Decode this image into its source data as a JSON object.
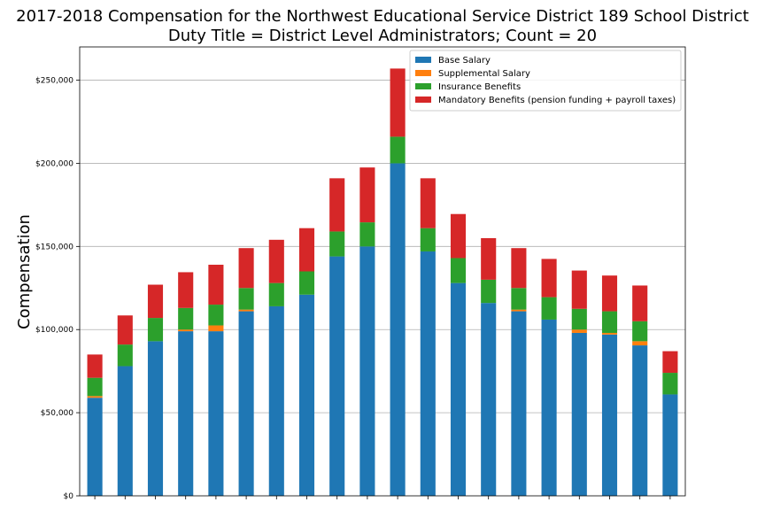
{
  "chart_data": {
    "type": "bar",
    "stacked": true,
    "title": "2017-2018 Compensation for the Northwest Educational Service District 189 School District",
    "subtitle": "Duty Title = District Level Administrators; Count = 20",
    "xlabel": "",
    "ylabel": "Compensation",
    "ylim": [
      0,
      270000
    ],
    "yticks": [
      0,
      50000,
      100000,
      150000,
      200000,
      250000
    ],
    "ytick_labels": [
      "$0",
      "$50,000",
      "$100,000",
      "$150,000",
      "$200,000",
      "$250,000"
    ],
    "grid": "horizontal",
    "legend_position": "top-right",
    "colors": {
      "base": "#1f77b4",
      "supplemental": "#ff7f0e",
      "insurance": "#2ca02c",
      "mandatory": "#d62728"
    },
    "series": [
      {
        "name": "Base Salary",
        "color": "#1f77b4",
        "values": [
          59000,
          78000,
          93000,
          99000,
          99000,
          111000,
          114000,
          121000,
          144000,
          150000,
          200000,
          147000,
          128000,
          116000,
          111000,
          106000,
          98000,
          97000,
          90500,
          61000
        ]
      },
      {
        "name": "Supplemental Salary",
        "color": "#ff7f0e",
        "values": [
          1000,
          0,
          0,
          1000,
          3500,
          1000,
          0,
          0,
          0,
          0,
          0,
          0,
          0,
          0,
          1000,
          0,
          2000,
          1000,
          2500,
          0
        ]
      },
      {
        "name": "Insurance Benefits",
        "color": "#2ca02c",
        "values": [
          11000,
          13000,
          14000,
          13000,
          12500,
          13000,
          14000,
          14000,
          15000,
          14500,
          16000,
          14000,
          15000,
          14000,
          13000,
          13500,
          12500,
          13000,
          12000,
          13000
        ]
      },
      {
        "name": "Mandatory Benefits (pension funding + payroll taxes)",
        "color": "#d62728",
        "values": [
          14000,
          17500,
          20000,
          21500,
          24000,
          24000,
          26000,
          26000,
          32000,
          33000,
          41000,
          30000,
          26500,
          25000,
          24000,
          23000,
          23000,
          21500,
          21500,
          13000
        ]
      }
    ]
  }
}
